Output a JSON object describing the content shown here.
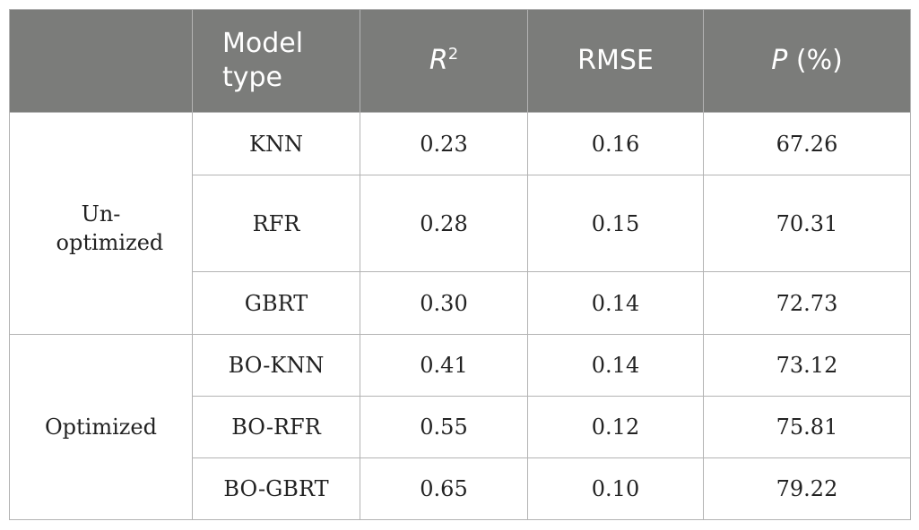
{
  "table": {
    "headers": {
      "group": "",
      "model_type": "Model type",
      "r2_base": "R",
      "r2_exp": "2",
      "rmse": "RMSE",
      "p_sym": "P",
      "p_unit": "(%)"
    },
    "groups": [
      {
        "label": "Un-optimized",
        "rows": [
          {
            "model": "KNN",
            "r2": "0.23",
            "rmse": "0.16",
            "p": "67.26"
          },
          {
            "model": "RFR",
            "r2": "0.28",
            "rmse": "0.15",
            "p": "70.31"
          },
          {
            "model": "GBRT",
            "r2": "0.30",
            "rmse": "0.14",
            "p": "72.73"
          }
        ]
      },
      {
        "label": "Optimized",
        "rows": [
          {
            "model": "BO-KNN",
            "r2": "0.41",
            "rmse": "0.14",
            "p": "73.12"
          },
          {
            "model": "BO-RFR",
            "r2": "0.55",
            "rmse": "0.12",
            "p": "75.81"
          },
          {
            "model": "BO-GBRT",
            "r2": "0.65",
            "rmse": "0.10",
            "p": "79.22"
          }
        ]
      }
    ]
  }
}
